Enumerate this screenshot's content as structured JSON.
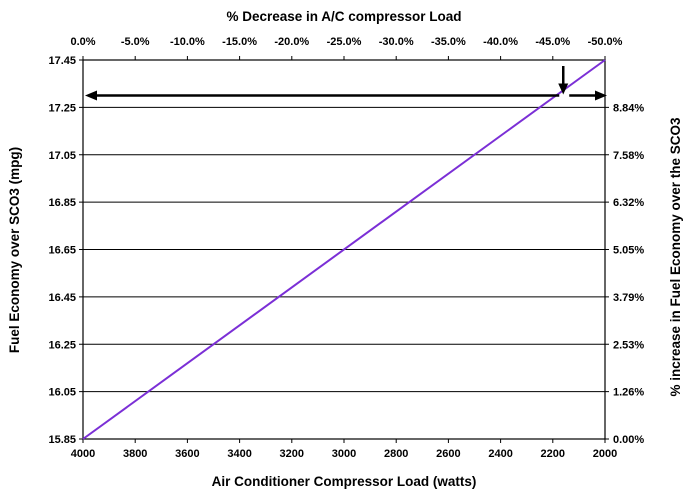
{
  "chart_data": {
    "type": "line",
    "top_title": "% Decrease in A/C compressor Load",
    "xlabel": "Air Conditioner Compressor Load (watts)",
    "ylabel_left": "Fuel Economy over SCO3 (mpg)",
    "ylabel_right": "% increase in Fuel Economy over the SCO3",
    "x_ticks": [
      "4000",
      "3800",
      "3600",
      "3400",
      "3200",
      "3000",
      "2800",
      "2600",
      "2400",
      "2200",
      "2000"
    ],
    "x_top_ticks": [
      "0.0%",
      "-5.0%",
      "-10.0%",
      "-15.0%",
      "-20.0%",
      "-25.0%",
      "-30.0%",
      "-35.0%",
      "-40.0%",
      "-45.0%",
      "-50.0%"
    ],
    "y_ticks": [
      "15.85",
      "16.05",
      "16.25",
      "16.45",
      "16.65",
      "16.85",
      "17.05",
      "17.25",
      "17.45"
    ],
    "y_right_ticks": [
      "0.00%",
      "1.26%",
      "2.53%",
      "3.79%",
      "5.05%",
      "6.32%",
      "7.58%",
      "8.84%"
    ],
    "xlim": [
      4000,
      2000
    ],
    "ylim": [
      15.85,
      17.45
    ],
    "x_reversed": true,
    "grid": "horizontal",
    "series": [
      {
        "x": [
          4000,
          2000
        ],
        "y": [
          15.85,
          17.45
        ],
        "color": "#7b2fd6"
      }
    ],
    "annotations": {
      "horizontal_arrow_y": 17.3,
      "horizontal_arrow_x_span": [
        4000,
        2000
      ],
      "vertical_arrow_x": 2160
    }
  }
}
